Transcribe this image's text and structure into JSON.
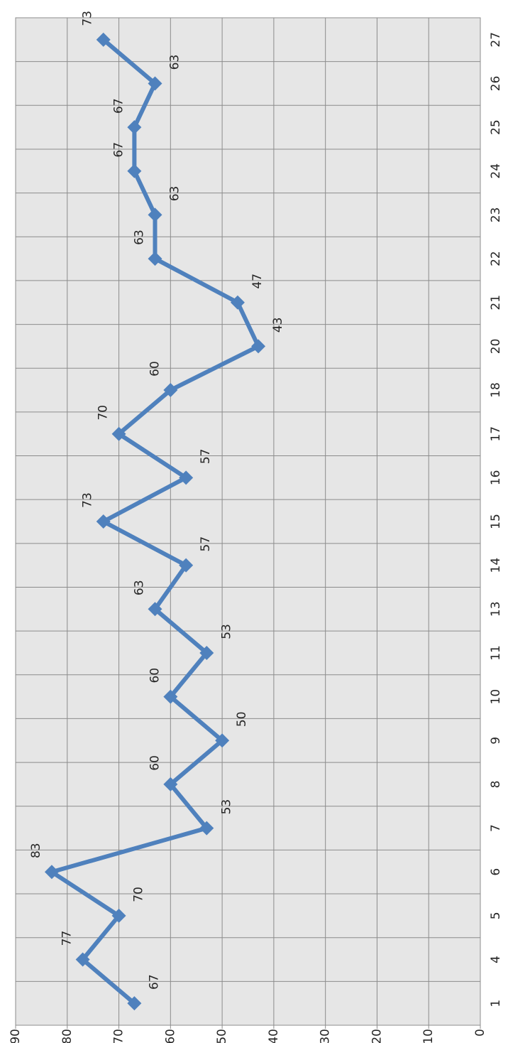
{
  "chart_data": {
    "type": "line",
    "categories": [
      "1",
      "4",
      "5",
      "6",
      "7",
      "8",
      "9",
      "10",
      "11",
      "13",
      "14",
      "15",
      "16",
      "17",
      "18",
      "20",
      "21",
      "22",
      "23",
      "24",
      "25",
      "26",
      "27"
    ],
    "series": [
      {
        "color": "#4f81bd",
        "values": [
          67,
          77,
          70,
          83,
          53,
          60,
          50,
          60,
          53,
          63,
          57,
          73,
          57,
          70,
          60,
          43,
          47,
          63,
          63,
          67,
          67,
          63,
          73
        ]
      }
    ],
    "ylim": [
      0,
      90
    ],
    "yticks": [
      0,
      10,
      20,
      30,
      40,
      50,
      60,
      70,
      80,
      90
    ],
    "grid": true,
    "data_labels": true
  }
}
